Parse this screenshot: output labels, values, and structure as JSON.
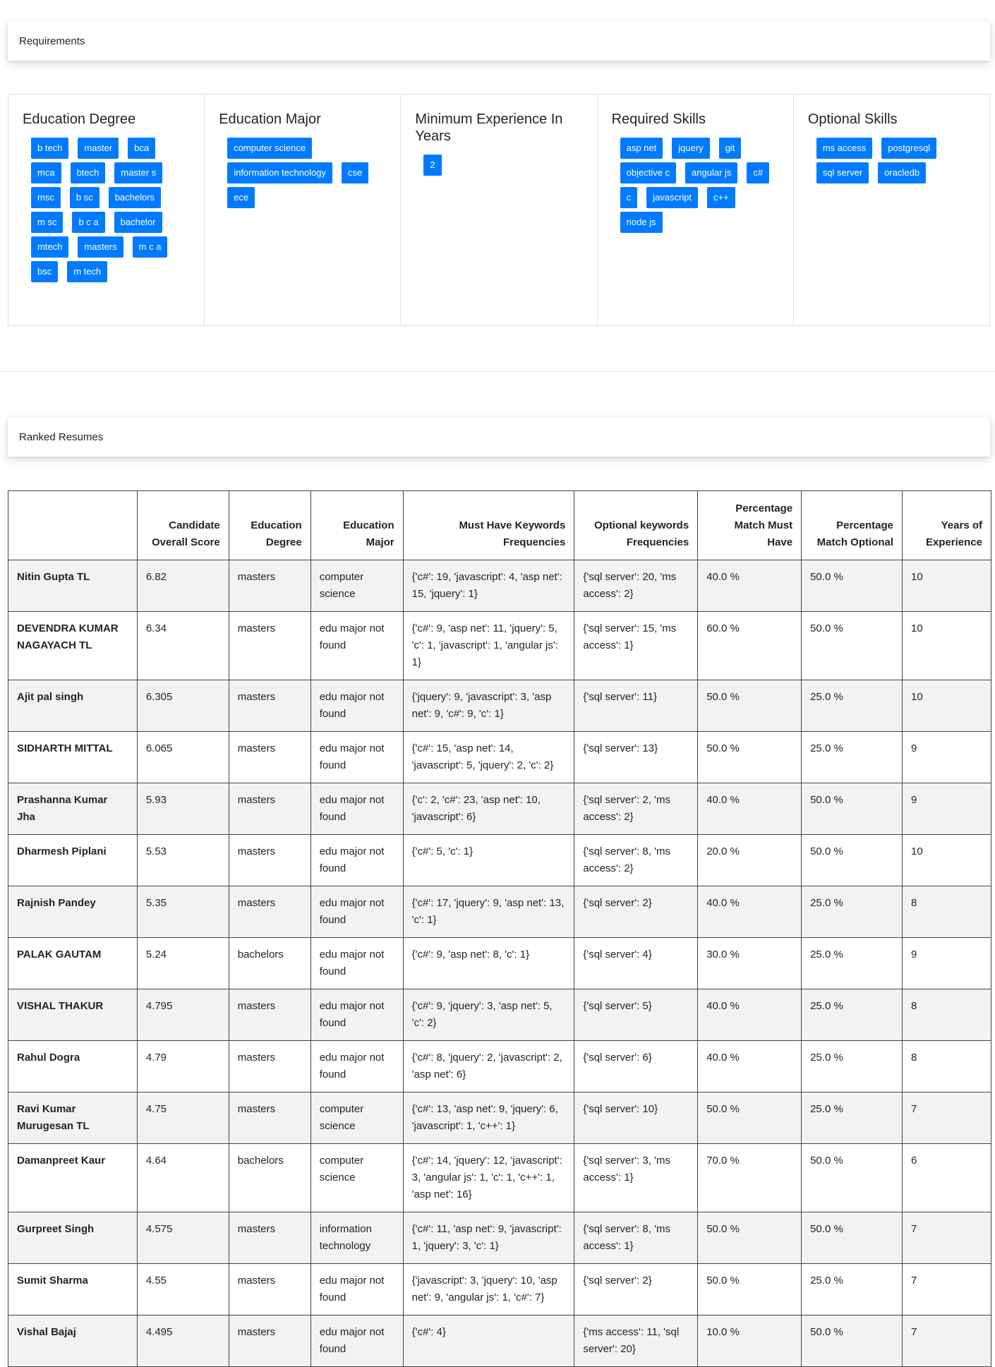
{
  "requirements_header": "Requirements",
  "ranked_header": "Ranked Resumes",
  "requirements": [
    {
      "title": "Education Degree",
      "chips": [
        "b tech",
        "master",
        "bca",
        "mca",
        "btech",
        "master s",
        "msc",
        "b sc",
        "bachelors",
        "m sc",
        "b c a",
        "bachelor",
        "mtech",
        "masters",
        "m c a",
        "bsc",
        "m tech"
      ]
    },
    {
      "title": "Education Major",
      "chips": [
        "computer science",
        "information technology",
        "cse",
        "ece"
      ]
    },
    {
      "title": "Minimum Experience In Years",
      "chips": [
        "2"
      ]
    },
    {
      "title": "Required Skills",
      "chips": [
        "asp net",
        "jquery",
        "git",
        "objective c",
        "angular js",
        "c#",
        "c",
        "javascript",
        "c++",
        "node js"
      ]
    },
    {
      "title": "Optional Skills",
      "chips": [
        "ms access",
        "postgresql",
        "sql server",
        "oracledb"
      ]
    }
  ],
  "table": {
    "headers": [
      "",
      "Candidate Overall Score",
      "Education Degree",
      "Education Major",
      "Must Have Keywords Frequencies",
      "Optional keywords Frequencies",
      "Percentage Match Must Have",
      "Percentage Match Optional",
      "Years of Experience"
    ],
    "rows": [
      [
        "Nitin Gupta TL",
        "6.82",
        "masters",
        "computer science",
        "{'c#': 19, 'javascript': 4, 'asp net': 15, 'jquery': 1}",
        "{'sql server': 20, 'ms access': 2}",
        "40.0 %",
        "50.0 %",
        "10"
      ],
      [
        "DEVENDRA KUMAR NAGAYACH TL",
        "6.34",
        "masters",
        "edu major not found",
        "{'c#': 9, 'asp net': 11, 'jquery': 5, 'c': 1, 'javascript': 1, 'angular js': 1}",
        "{'sql server': 15, 'ms access': 1}",
        "60.0 %",
        "50.0 %",
        "10"
      ],
      [
        "Ajit pal singh",
        "6.305",
        "masters",
        "edu major not found",
        "{'jquery': 9, 'javascript': 3, 'asp net': 9, 'c#': 9, 'c': 1}",
        "{'sql server': 11}",
        "50.0 %",
        "25.0 %",
        "10"
      ],
      [
        "SIDHARTH MITTAL",
        "6.065",
        "masters",
        "edu major not found",
        "{'c#': 15, 'asp net': 14, 'javascript': 5, 'jquery': 2, 'c': 2}",
        "{'sql server': 13}",
        "50.0 %",
        "25.0 %",
        "9"
      ],
      [
        "Prashanna Kumar Jha",
        "5.93",
        "masters",
        "edu major not found",
        "{'c': 2, 'c#': 23, 'asp net': 10, 'javascript': 6}",
        "{'sql server': 2, 'ms access': 2}",
        "40.0 %",
        "50.0 %",
        "9"
      ],
      [
        "Dharmesh Piplani",
        "5.53",
        "masters",
        "edu major not found",
        "{'c#': 5, 'c': 1}",
        "{'sql server': 8, 'ms access': 2}",
        "20.0 %",
        "50.0 %",
        "10"
      ],
      [
        "Rajnish Pandey",
        "5.35",
        "masters",
        "edu major not found",
        "{'c#': 17, 'jquery': 9, 'asp net': 13, 'c': 1}",
        "{'sql server': 2}",
        "40.0 %",
        "25.0 %",
        "8"
      ],
      [
        "PALAK GAUTAM",
        "5.24",
        "bachelors",
        "edu major not found",
        "{'c#': 9, 'asp net': 8, 'c': 1}",
        "{'sql server': 4}",
        "30.0 %",
        "25.0 %",
        "9"
      ],
      [
        "VISHAL THAKUR",
        "4.795",
        "masters",
        "edu major not found",
        "{'c#': 9, 'jquery': 3, 'asp net': 5, 'c': 2}",
        "{'sql server': 5}",
        "40.0 %",
        "25.0 %",
        "8"
      ],
      [
        "Rahul Dogra",
        "4.79",
        "masters",
        "edu major not found",
        "{'c#': 8, 'jquery': 2, 'javascript': 2, 'asp net': 6}",
        "{'sql server': 6}",
        "40.0 %",
        "25.0 %",
        "8"
      ],
      [
        "Ravi Kumar Murugesan TL",
        "4.75",
        "masters",
        "computer science",
        "{'c#': 13, 'asp net': 9, 'jquery': 6, 'javascript': 1, 'c++': 1}",
        "{'sql server': 10}",
        "50.0 %",
        "25.0 %",
        "7"
      ],
      [
        "Damanpreet Kaur",
        "4.64",
        "bachelors",
        "computer science",
        "{'c#': 14, 'jquery': 12, 'javascript': 3, 'angular js': 1, 'c': 1, 'c++': 1, 'asp net': 16}",
        "{'sql server': 3, 'ms access': 1}",
        "70.0 %",
        "50.0 %",
        "6"
      ],
      [
        "Gurpreet Singh",
        "4.575",
        "masters",
        "information technology",
        "{'c#': 11, 'asp net': 9, 'javascript': 1, 'jquery': 3, 'c': 1}",
        "{'sql server': 8, 'ms access': 1}",
        "50.0 %",
        "50.0 %",
        "7"
      ],
      [
        "Sumit Sharma",
        "4.55",
        "masters",
        "edu major not found",
        "{'javascript': 3, 'jquery': 10, 'asp net': 9, 'angular js': 1, 'c#': 7}",
        "{'sql server': 2}",
        "50.0 %",
        "25.0 %",
        "7"
      ],
      [
        "Vishal Bajaj",
        "4.495",
        "masters",
        "edu major not found",
        "{'c#': 4}",
        "{'ms access': 11, 'sql server': 20}",
        "10.0 %",
        "50.0 %",
        "7"
      ]
    ]
  }
}
